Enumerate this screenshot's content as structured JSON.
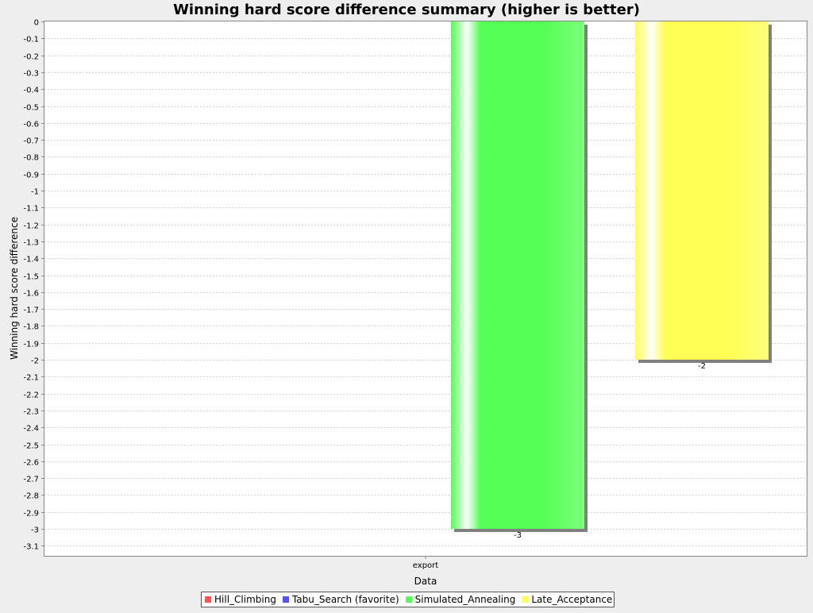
{
  "chart_data": {
    "type": "bar",
    "title": "Winning hard score difference summary (higher is better)",
    "xlabel": "Data",
    "ylabel": "Winning hard score difference",
    "categories": [
      "export"
    ],
    "ylim": [
      -3.15,
      0
    ],
    "yticks": [
      0,
      -0.1,
      -0.2,
      -0.3,
      -0.4,
      -0.5,
      -0.6,
      -0.7,
      -0.8,
      -0.9,
      -1,
      -1.1,
      -1.2,
      -1.3,
      -1.4,
      -1.5,
      -1.6,
      -1.7,
      -1.8,
      -1.9,
      -2,
      -2.1,
      -2.2,
      -2.3,
      -2.4,
      -2.5,
      -2.6,
      -2.7,
      -2.8,
      -2.9,
      -3,
      -3.1
    ],
    "ytick_labels": [
      "0",
      "-0.1",
      "-0.2",
      "-0.3",
      "-0.4",
      "-0.5",
      "-0.6",
      "-0.7",
      "-0.8",
      "-0.9",
      "-1",
      "-1.1",
      "-1.2",
      "-1.3",
      "-1.4",
      "-1.5",
      "-1.6",
      "-1.7",
      "-1.8",
      "-1.9",
      "-2",
      "-2.1",
      "-2.2",
      "-2.3",
      "-2.4",
      "-2.5",
      "-2.6",
      "-2.7",
      "-2.8",
      "-2.9",
      "-3",
      "-3.1"
    ],
    "grid": true,
    "legend_position": "bottom",
    "series": [
      {
        "name": "Hill_Climbing",
        "color": "#ff5555",
        "values": [
          0
        ],
        "labels": [
          ""
        ]
      },
      {
        "name": "Tabu_Search (favorite)",
        "color": "#5555ff",
        "values": [
          0
        ],
        "labels": [
          ""
        ]
      },
      {
        "name": "Simulated_Annealing",
        "color": "#55ff55",
        "values": [
          -3
        ],
        "labels": [
          "-3"
        ]
      },
      {
        "name": "Late_Acceptance",
        "color": "#ffff55",
        "values": [
          -2
        ],
        "labels": [
          "-2"
        ]
      }
    ]
  }
}
